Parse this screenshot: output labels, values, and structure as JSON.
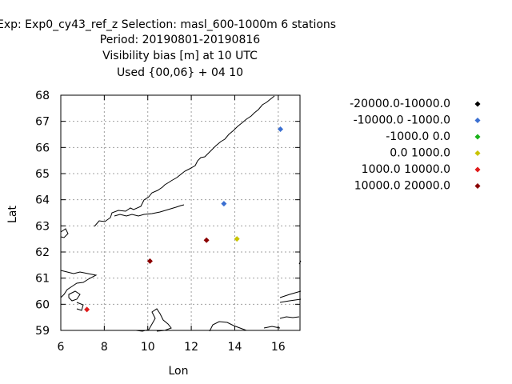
{
  "chart_data": {
    "type": "scatter",
    "title_lines": [
      "Exp: Exp0_cy43_ref_z   Selection: masl_600-1000m      6 stations",
      "Period: 20190801-20190816",
      "Visibility bias [m] at  10 UTC",
      "Used {00,06} + 04 10"
    ],
    "xlabel": "Lon",
    "ylabel": "Lat",
    "xlim": [
      6,
      17
    ],
    "ylim": [
      59,
      68
    ],
    "xticks": [
      "6",
      "8",
      "10",
      "12",
      "14",
      "16"
    ],
    "yticks": [
      "59",
      "60",
      "61",
      "62",
      "63",
      "64",
      "65",
      "66",
      "67",
      "68"
    ],
    "grid": true,
    "legend_position": "right",
    "legend": [
      {
        "label": "-20000.0-10000.0",
        "color": "#000000"
      },
      {
        "label": "-10000.0 -1000.0",
        "color": "#3a6fd1"
      },
      {
        "label": "-1000.0 0.0",
        "color": "#19b219"
      },
      {
        "label": "0.0 1000.0",
        "color": "#c9c400"
      },
      {
        "label": "1000.0 10000.0",
        "color": "#e01b1b"
      },
      {
        "label": "10000.0 20000.0",
        "color": "#8b0000"
      }
    ],
    "points": [
      {
        "x": 16.1,
        "y": 66.7,
        "class": 1
      },
      {
        "x": 13.5,
        "y": 63.85,
        "class": 1
      },
      {
        "x": 14.1,
        "y": 62.5,
        "class": 3
      },
      {
        "x": 12.7,
        "y": 62.45,
        "class": 5
      },
      {
        "x": 10.1,
        "y": 61.65,
        "class": 5
      },
      {
        "x": 7.2,
        "y": 59.8,
        "class": 4
      }
    ]
  }
}
